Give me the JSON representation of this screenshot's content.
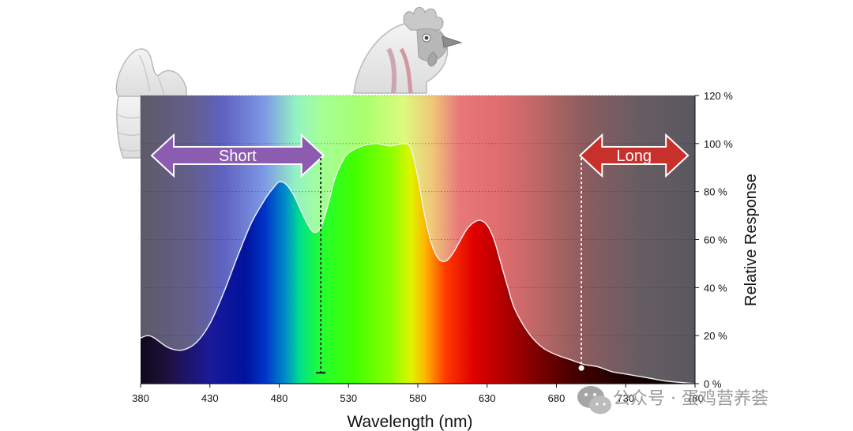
{
  "colors": {
    "short_arrow": "#8b5cb0",
    "long_arrow": "#c8302b",
    "curve_edge": "#f2f2f2",
    "bg_dark": "#5d5a66"
  },
  "icons": [
    "chicken-illustration",
    "wechat-icon"
  ],
  "watermark": {
    "text": "公众号 · 蛋鸡营养荟"
  },
  "chart_data": {
    "type": "area",
    "title": "",
    "xlabel": "Wavelength (nm)",
    "ylabel": "Relative Response",
    "xlim": [
      380,
      780
    ],
    "ylim": [
      0,
      120
    ],
    "y_unit": "%",
    "x_ticks": [
      380,
      430,
      480,
      530,
      580,
      630,
      680,
      730,
      780
    ],
    "y_ticks": [
      0,
      20,
      40,
      60,
      80,
      100,
      120
    ],
    "x_tick_labels": [
      "380",
      "430",
      "480",
      "530",
      "580",
      "630",
      "680",
      "730",
      "780"
    ],
    "y_tick_labels": [
      "0 %",
      "20 %",
      "40 %",
      "60 %",
      "80 %",
      "100 %",
      "120 %"
    ],
    "grid": "horizontal dotted",
    "series": [
      {
        "x": [
          380,
          385,
          390,
          400,
          410,
          420,
          430,
          440,
          450,
          460,
          470,
          475,
          480,
          485,
          490,
          495,
          500,
          505,
          510,
          515,
          520,
          525,
          530,
          540,
          550,
          560,
          570,
          575,
          580,
          585,
          590,
          595,
          600,
          605,
          610,
          615,
          620,
          625,
          630,
          635,
          640,
          645,
          650,
          660,
          670,
          680,
          690,
          700,
          710,
          720,
          730,
          740,
          750,
          760,
          770,
          780
        ],
        "y": [
          19,
          20,
          19,
          15,
          14,
          17,
          25,
          38,
          53,
          67,
          77,
          81,
          84,
          83,
          79,
          73,
          67,
          63,
          65,
          74,
          85,
          92,
          96,
          99,
          100,
          99,
          100,
          98,
          86,
          70,
          58,
          52,
          51,
          54,
          59,
          64,
          67,
          68,
          66,
          60,
          50,
          40,
          31,
          21,
          15,
          12,
          10,
          8,
          7,
          5,
          4,
          3,
          2,
          1,
          0.5,
          0
        ]
      }
    ],
    "annotations": [
      {
        "label": "Short",
        "direction": "both",
        "x_from": 388,
        "x_to": 512,
        "y": 95
      },
      {
        "label": "Long",
        "direction": "both",
        "x_from": 697,
        "x_to": 775,
        "y": 95
      }
    ],
    "markers": [
      {
        "name": "short-boundary",
        "x": 510,
        "y_from": 4.5,
        "y_to": 94,
        "line_color": "#111111",
        "end": "bar"
      },
      {
        "name": "long-boundary",
        "x": 698,
        "y_from": 6.5,
        "y_to": 94,
        "line_color": "#ffffff",
        "end": "dot"
      }
    ],
    "spectrum_stops": [
      {
        "nm": 380,
        "color": "#0d0a1a"
      },
      {
        "nm": 400,
        "color": "#1f1040"
      },
      {
        "nm": 430,
        "color": "#1b1a9a"
      },
      {
        "nm": 455,
        "color": "#00129c"
      },
      {
        "nm": 470,
        "color": "#0035c8"
      },
      {
        "nm": 485,
        "color": "#0090c8"
      },
      {
        "nm": 495,
        "color": "#00e08c"
      },
      {
        "nm": 510,
        "color": "#22ff30"
      },
      {
        "nm": 535,
        "color": "#44ff00"
      },
      {
        "nm": 560,
        "color": "#88ff00"
      },
      {
        "nm": 575,
        "color": "#ddf500"
      },
      {
        "nm": 585,
        "color": "#ffb800"
      },
      {
        "nm": 600,
        "color": "#ff3a00"
      },
      {
        "nm": 620,
        "color": "#e00000"
      },
      {
        "nm": 650,
        "color": "#a00000"
      },
      {
        "nm": 690,
        "color": "#4a0000"
      },
      {
        "nm": 730,
        "color": "#1a0000"
      },
      {
        "nm": 780,
        "color": "#050000"
      }
    ],
    "background_stops": [
      {
        "nm": 380,
        "color": "#5e5a68"
      },
      {
        "nm": 415,
        "color": "#635e8a"
      },
      {
        "nm": 440,
        "color": "#5f62c0"
      },
      {
        "nm": 470,
        "color": "#7e9ae6"
      },
      {
        "nm": 492,
        "color": "#93f2c4"
      },
      {
        "nm": 510,
        "color": "#a4ff96"
      },
      {
        "nm": 540,
        "color": "#a8ff6e"
      },
      {
        "nm": 570,
        "color": "#dcfa7e"
      },
      {
        "nm": 590,
        "color": "#f0c878"
      },
      {
        "nm": 610,
        "color": "#e8787a"
      },
      {
        "nm": 640,
        "color": "#e06c6e"
      },
      {
        "nm": 665,
        "color": "#c06866"
      },
      {
        "nm": 700,
        "color": "#8c5c5e"
      },
      {
        "nm": 740,
        "color": "#665d63"
      },
      {
        "nm": 780,
        "color": "#5a575f"
      }
    ]
  }
}
